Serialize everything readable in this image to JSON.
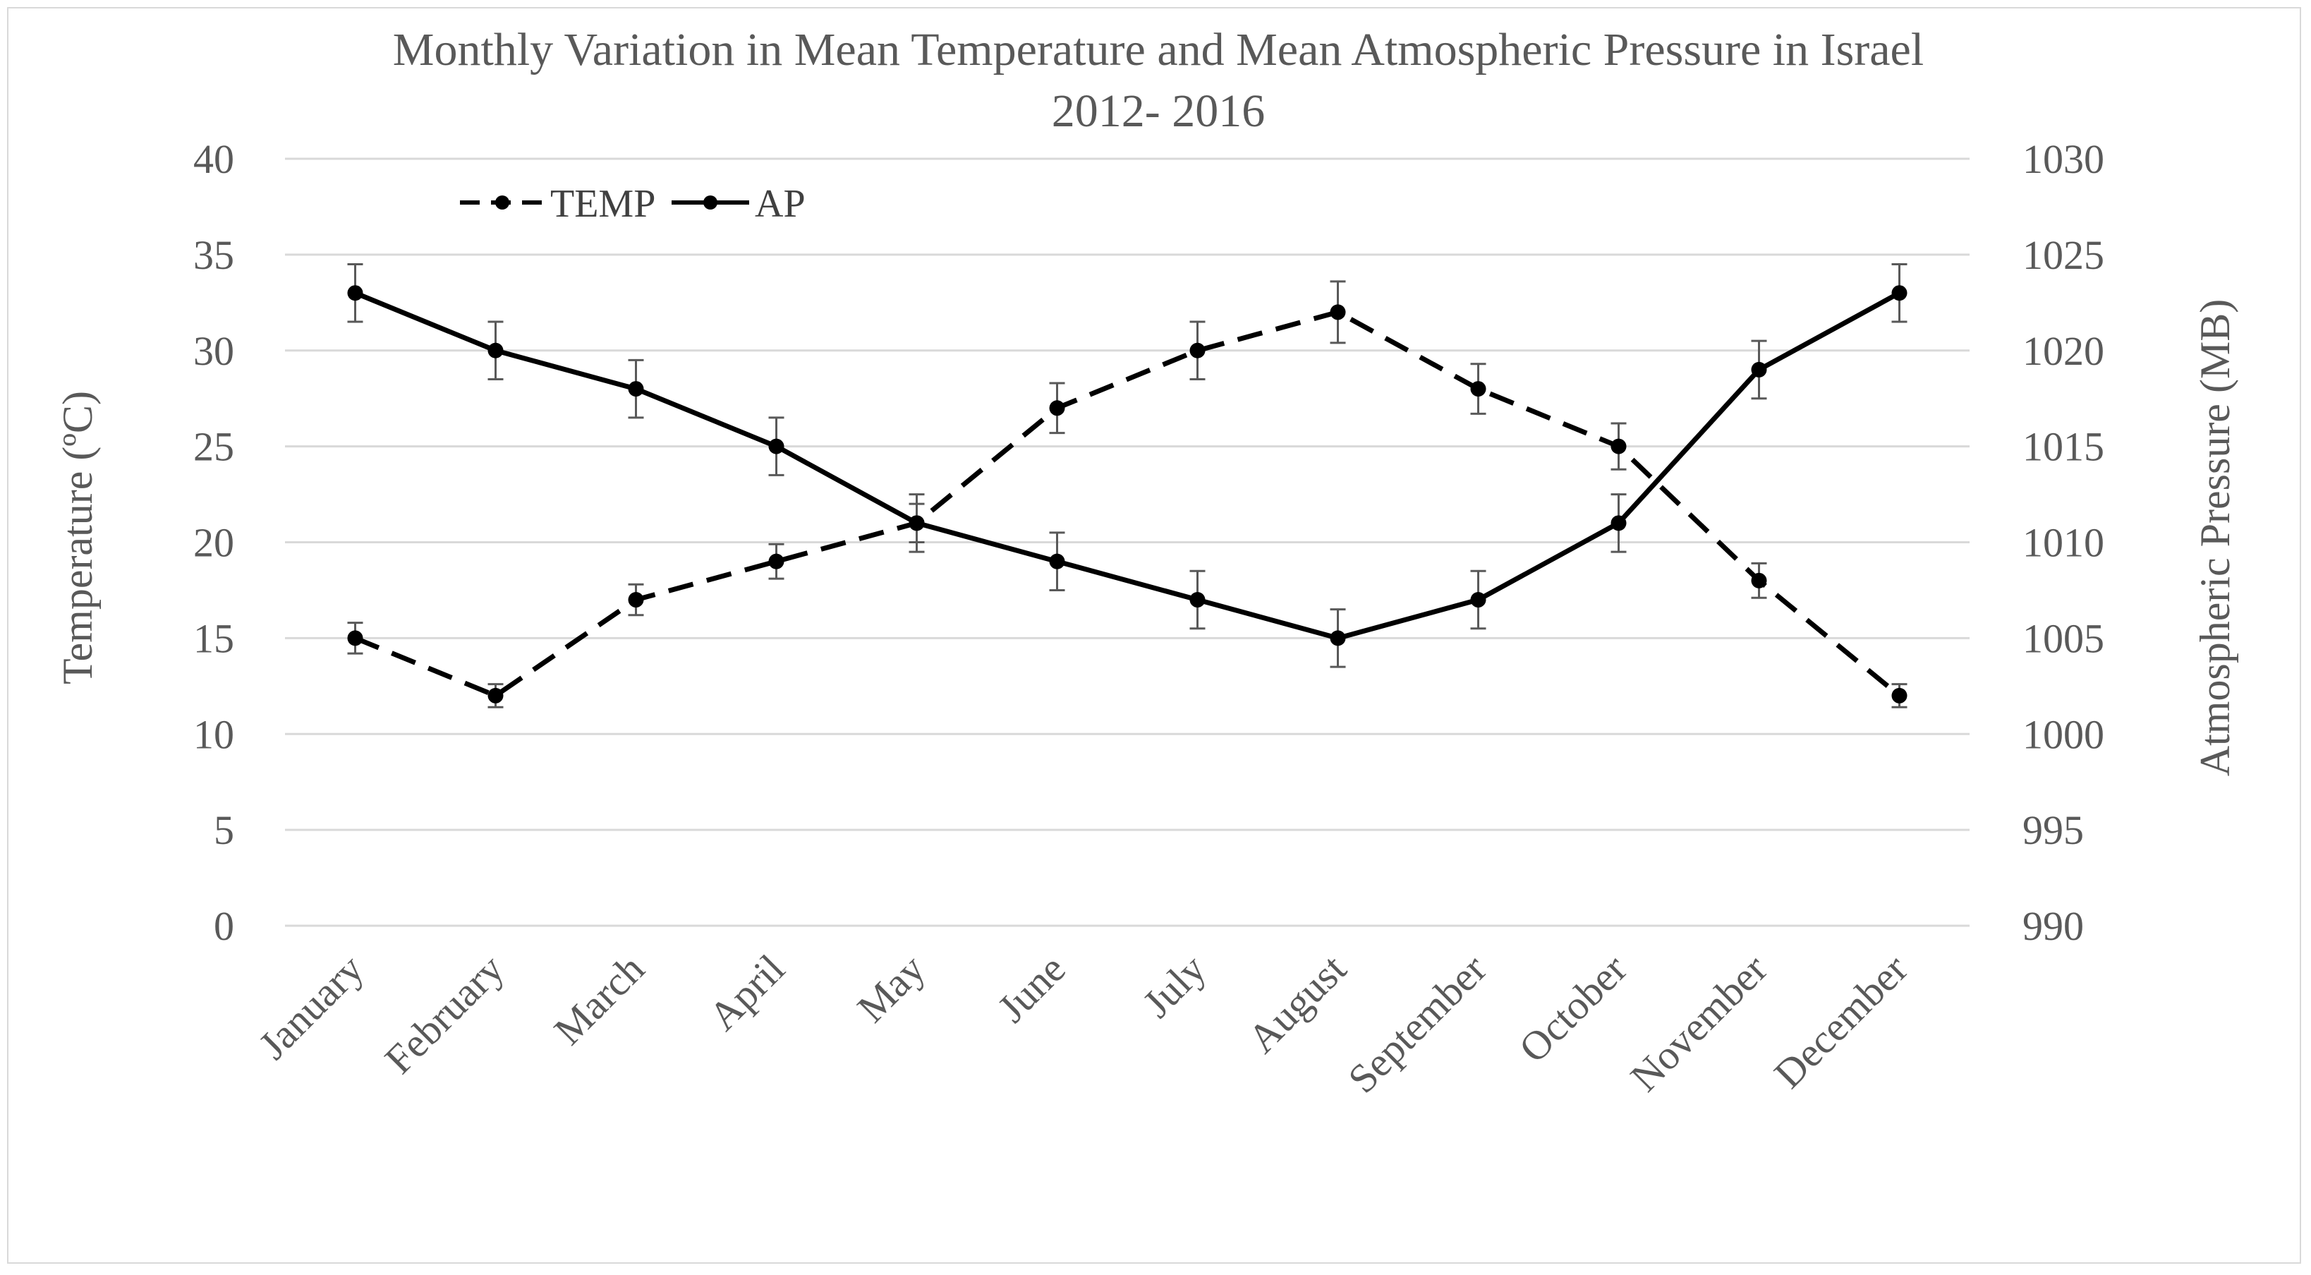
{
  "chart_data": {
    "type": "line",
    "title": "Monthly Variation in Mean Temperature and Mean Atmospheric Pressure in Israel",
    "subtitle": "2012- 2016",
    "categories": [
      "January",
      "February",
      "March",
      "April",
      "May",
      "June",
      "July",
      "August",
      "September",
      "October",
      "November",
      "December"
    ],
    "y_left": {
      "label": "Temperature (ºC)",
      "range": [
        0,
        40
      ],
      "ticks": [
        "0",
        "5",
        "10",
        "15",
        "20",
        "25",
        "30",
        "35",
        "40"
      ]
    },
    "y_right": {
      "label": "Atmospheric Pressure (MB)",
      "range": [
        990,
        1030
      ],
      "ticks": [
        "990",
        "995",
        "1000",
        "1005",
        "1010",
        "1015",
        "1020",
        "1025",
        "1030"
      ]
    },
    "grid": true,
    "legend_position": "top-left",
    "series": [
      {
        "name": "TEMP",
        "axis": "left",
        "style": "dashed",
        "color": "#000000",
        "values": [
          15,
          12,
          17,
          19,
          21,
          27,
          30,
          32,
          28,
          25,
          18,
          12
        ],
        "error": [
          0.8,
          0.6,
          0.8,
          0.9,
          1.0,
          1.3,
          1.5,
          1.6,
          1.3,
          1.2,
          0.9,
          0.6
        ]
      },
      {
        "name": "AP",
        "axis": "right",
        "style": "solid",
        "color": "#000000",
        "values": [
          1023,
          1020,
          1018,
          1015,
          1011,
          1009,
          1007,
          1005,
          1007,
          1011,
          1019,
          1023
        ],
        "error": [
          1.5,
          1.5,
          1.5,
          1.5,
          1.5,
          1.5,
          1.5,
          1.5,
          1.5,
          1.5,
          1.5,
          1.5
        ]
      }
    ],
    "colors": {
      "grid": "#d9d9d9",
      "text": "#595959",
      "error_bar": "#595959"
    }
  }
}
